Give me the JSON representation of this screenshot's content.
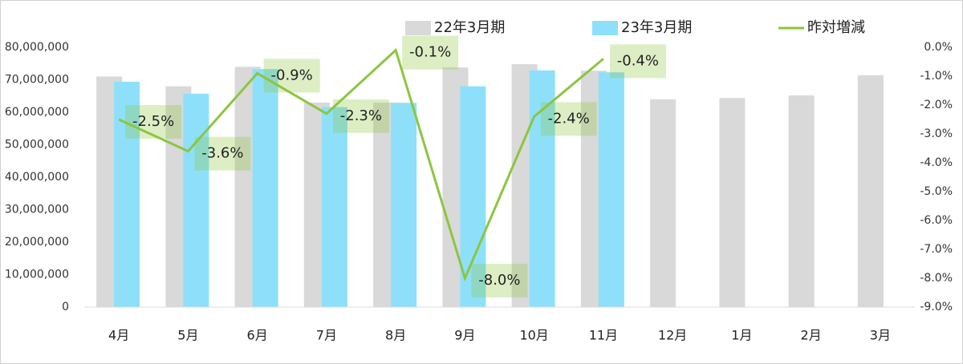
{
  "chart_data": {
    "type": "bar-line",
    "categories": [
      "4月",
      "5月",
      "6月",
      "7月",
      "8月",
      "9月",
      "10月",
      "11月",
      "12月",
      "1月",
      "2月",
      "3月"
    ],
    "series": [
      {
        "name": "22年3月期",
        "color": "#d9d9d9",
        "values": [
          71000000,
          68000000,
          74000000,
          63000000,
          63000000,
          73800000,
          74800000,
          72800000,
          64000000,
          64400000,
          65200000,
          71400000
        ]
      },
      {
        "name": "23年3月期",
        "color": "#8ee0fa",
        "values": [
          69400000,
          65700000,
          73300000,
          61600000,
          62900000,
          68000000,
          72900000,
          72300000,
          null,
          null,
          null,
          null
        ]
      },
      {
        "name": "昨対増減",
        "color": "#8cc63f",
        "axis": "y2",
        "type": "line",
        "values": [
          -2.5,
          -3.6,
          -0.9,
          -2.3,
          -0.1,
          -8.0,
          -2.4,
          -0.4,
          null,
          null,
          null,
          null
        ],
        "value_labels": [
          "-2.5%",
          "-3.6%",
          "-0.9%",
          "-2.3%",
          "-0.1%",
          "-8.0%",
          "-2.4%",
          "-0.4%",
          null,
          null,
          null,
          null
        ]
      }
    ],
    "ylim": [
      0,
      80000000
    ],
    "yticks": [
      0,
      {
        "value": 10000000,
        "label": "10,000,000"
      },
      {
        "value": 20000000,
        "label": "20,000,000"
      },
      {
        "value": 30000000,
        "label": "30,000,000"
      },
      {
        "value": 40000000,
        "label": "40,000,000"
      },
      {
        "value": 50000000,
        "label": "50,000,000"
      },
      {
        "value": 60000000,
        "label": "60,000,000"
      },
      {
        "value": 70000000,
        "label": "70,000,000"
      },
      {
        "value": 80000000,
        "label": "80,000,000"
      }
    ],
    "y2lim": [
      -9,
      0
    ],
    "y2ticks": [
      {
        "value": 0,
        "label": "0.0%"
      },
      {
        "value": -1,
        "label": "-1.0%"
      },
      {
        "value": -2,
        "label": "-2.0%"
      },
      {
        "value": -3,
        "label": "-3.0%"
      },
      {
        "value": -4,
        "label": "-4.0%"
      },
      {
        "value": -5,
        "label": "-5.0%"
      },
      {
        "value": -6,
        "label": "-6.0%"
      },
      {
        "value": -7,
        "label": "-7.0%"
      },
      {
        "value": -8,
        "label": "-8.0%"
      },
      {
        "value": -9,
        "label": "-9.0%"
      }
    ]
  }
}
